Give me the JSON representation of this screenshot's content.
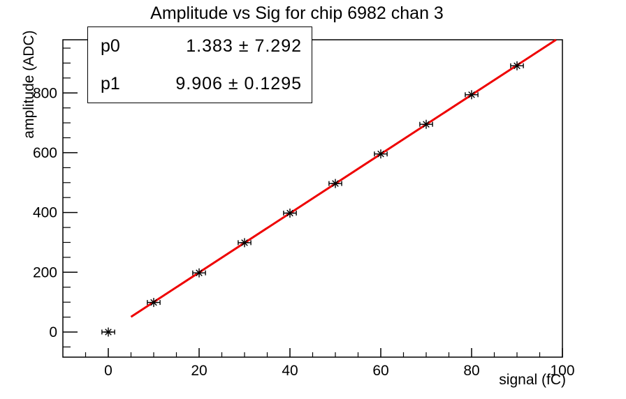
{
  "title": "Amplitude vs Sig for chip 6982 chan 3",
  "stats_box": {
    "rows": [
      {
        "name": "p0",
        "value": "1.383 ± 7.292"
      },
      {
        "name": "p1",
        "value": "9.906 ± 0.1295"
      }
    ]
  },
  "chart_data": {
    "type": "scatter",
    "title": "Amplitude vs Sig for chip 6982 chan 3",
    "xlabel": "signal (fC)",
    "ylabel": "amplitude (ADC)",
    "x": [
      0,
      10,
      20,
      30,
      40,
      50,
      60,
      70,
      80,
      90
    ],
    "y": [
      0,
      99,
      198,
      299,
      398,
      497,
      596,
      695,
      794,
      891
    ],
    "x_error": 1.4,
    "marker": "asterisk",
    "marker_color": "#000000",
    "axis_color": "#000000",
    "background_color": "#ffffff",
    "xlim": [
      -10,
      100
    ],
    "ylim": [
      -84,
      978
    ],
    "xticks": [
      0,
      20,
      40,
      60,
      80,
      100
    ],
    "yticks": [
      0,
      200,
      400,
      600,
      800
    ],
    "x_minor_step": 5,
    "y_minor_step": 50,
    "grid": false,
    "legend_position": "none",
    "fit": {
      "p0": 1.383,
      "p0_err": 7.292,
      "p1": 9.906,
      "p1_err": 0.1295,
      "x_start": 5,
      "x_end": 98.6,
      "color": "#ee0000",
      "width": 3
    }
  }
}
